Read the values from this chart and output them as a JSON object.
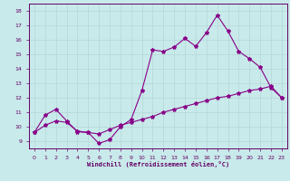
{
  "xlabel": "Windchill (Refroidissement éolien,°C)",
  "background_color": "#c8eaea",
  "grid_color": "#b8dada",
  "line_color": "#880088",
  "xlim": [
    -0.5,
    23.5
  ],
  "ylim": [
    8.5,
    18.5
  ],
  "xticks": [
    0,
    1,
    2,
    3,
    4,
    5,
    6,
    7,
    8,
    9,
    10,
    11,
    12,
    13,
    14,
    15,
    16,
    17,
    18,
    19,
    20,
    21,
    22,
    23
  ],
  "yticks": [
    9,
    10,
    11,
    12,
    13,
    14,
    15,
    16,
    17,
    18
  ],
  "line1_x": [
    0,
    1,
    2,
    3,
    4,
    5,
    6,
    7,
    8,
    9,
    10,
    11,
    12,
    13,
    14,
    15,
    16,
    17,
    18,
    19,
    20,
    21,
    22,
    23
  ],
  "line1_y": [
    9.6,
    10.8,
    11.2,
    10.4,
    9.65,
    9.6,
    8.85,
    9.1,
    10.0,
    10.5,
    12.5,
    15.3,
    15.2,
    15.5,
    16.1,
    15.55,
    16.5,
    17.7,
    16.6,
    15.2,
    14.7,
    14.1,
    12.7,
    12.0
  ],
  "line2_x": [
    0,
    1,
    2,
    3,
    4,
    5,
    6,
    7,
    8,
    9,
    10,
    11,
    12,
    13,
    14,
    15,
    16,
    17,
    18,
    19,
    20,
    21,
    22,
    23
  ],
  "line2_y": [
    9.6,
    10.1,
    10.4,
    10.3,
    9.7,
    9.6,
    9.5,
    9.8,
    10.1,
    10.3,
    10.5,
    10.7,
    11.0,
    11.2,
    11.4,
    11.6,
    11.8,
    12.0,
    12.1,
    12.3,
    12.5,
    12.6,
    12.8,
    12.0
  ],
  "marker": "*",
  "markersize": 3,
  "linewidth": 0.8,
  "tick_fontsize": 4.5,
  "label_fontsize": 5.0
}
